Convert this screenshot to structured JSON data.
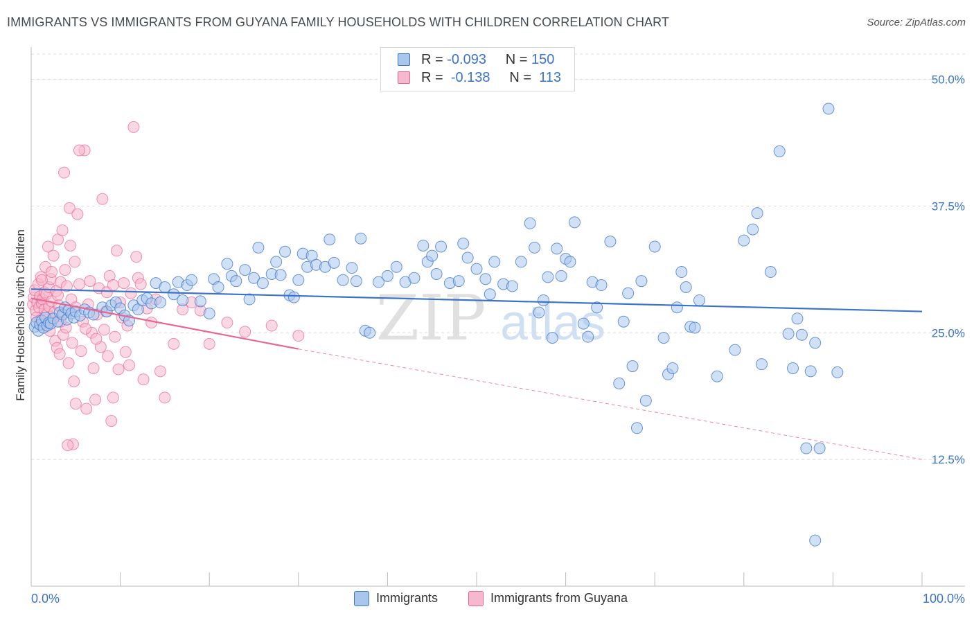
{
  "title": "IMMIGRANTS VS IMMIGRANTS FROM GUYANA FAMILY HOUSEHOLDS WITH CHILDREN CORRELATION CHART",
  "source": "Source: ZipAtlas.com",
  "watermark": {
    "zip": "ZIP",
    "atlas": "atlas"
  },
  "colors": {
    "blue": "#3b73c9",
    "blue_fill": "#a9c6ec",
    "pink": "#e86592",
    "pink_fill": "#f6b8cc",
    "grid": "#dcdcdc",
    "tick_label": "#3b73c9"
  },
  "legend_top": {
    "rows": [
      {
        "r_label": "R =",
        "r_value": "-0.093",
        "n_label": "N =",
        "n_value": "150"
      },
      {
        "r_label": "R =",
        "r_value": "-0.138",
        "n_label": "N =",
        "n_value": "113"
      }
    ]
  },
  "chart_data": {
    "type": "scatter",
    "title": "IMMIGRANTS VS IMMIGRANTS FROM GUYANA FAMILY HOUSEHOLDS WITH CHILDREN CORRELATION CHART",
    "xlabel": "",
    "ylabel": "Family Households with Children",
    "xlim": [
      0,
      100
    ],
    "ylim": [
      0,
      52.5
    ],
    "x_tick_labels": [
      "0.0%",
      "100.0%"
    ],
    "y_ticks": [
      12.5,
      25.0,
      37.5,
      50.0
    ],
    "y_tick_labels": [
      "12.5%",
      "25.0%",
      "37.5%",
      "50.0%"
    ],
    "grid": true,
    "legend_position": "bottom",
    "series": [
      {
        "name": "Immigrants",
        "color": "#3b73c9",
        "trend": {
          "x": [
            0,
            100
          ],
          "y": [
            29.3,
            27.1
          ],
          "style": "solid"
        },
        "points": [
          [
            0.4,
            25.6
          ],
          [
            0.6,
            26.0
          ],
          [
            0.8,
            25.2
          ],
          [
            1.0,
            25.8
          ],
          [
            1.2,
            26.2
          ],
          [
            1.4,
            25.5
          ],
          [
            1.6,
            26.5
          ],
          [
            1.8,
            25.7
          ],
          [
            2.0,
            26.0
          ],
          [
            2.2,
            25.9
          ],
          [
            2.5,
            26.4
          ],
          [
            3.0,
            26.1
          ],
          [
            3.2,
            27.0
          ],
          [
            3.5,
            26.8
          ],
          [
            3.8,
            27.5
          ],
          [
            4.0,
            26.3
          ],
          [
            4.2,
            27.2
          ],
          [
            4.5,
            26.9
          ],
          [
            4.8,
            26.5
          ],
          [
            5.0,
            27.1
          ],
          [
            5.5,
            26.7
          ],
          [
            6.0,
            27.3
          ],
          [
            6.5,
            27.0
          ],
          [
            7.0,
            26.8
          ],
          [
            8.0,
            27.5
          ],
          [
            8.5,
            27.1
          ],
          [
            9.0,
            27.7
          ],
          [
            9.5,
            28.0
          ],
          [
            10.0,
            27.4
          ],
          [
            10.5,
            26.7
          ],
          [
            11.0,
            26.2
          ],
          [
            11.5,
            27.7
          ],
          [
            12.0,
            27.3
          ],
          [
            12.5,
            28.2
          ],
          [
            13.0,
            28.4
          ],
          [
            13.5,
            27.9
          ],
          [
            14.0,
            29.9
          ],
          [
            14.5,
            28.0
          ],
          [
            15.0,
            29.5
          ],
          [
            16.0,
            28.8
          ],
          [
            16.5,
            30.0
          ],
          [
            17.0,
            28.2
          ],
          [
            17.5,
            29.7
          ],
          [
            18.0,
            30.2
          ],
          [
            19.0,
            28.1
          ],
          [
            20.0,
            26.9
          ],
          [
            20.5,
            30.3
          ],
          [
            21.0,
            29.5
          ],
          [
            22.0,
            31.8
          ],
          [
            22.5,
            30.6
          ],
          [
            23.0,
            30.1
          ],
          [
            24.0,
            31.2
          ],
          [
            24.5,
            28.3
          ],
          [
            25.0,
            30.4
          ],
          [
            25.5,
            33.4
          ],
          [
            26.0,
            29.9
          ],
          [
            27.0,
            30.8
          ],
          [
            27.5,
            32.0
          ],
          [
            28.0,
            30.7
          ],
          [
            28.5,
            33.0
          ],
          [
            29.0,
            28.7
          ],
          [
            29.5,
            28.5
          ],
          [
            30.0,
            30.2
          ],
          [
            30.5,
            32.8
          ],
          [
            31.0,
            31.5
          ],
          [
            31.5,
            32.6
          ],
          [
            32.0,
            31.7
          ],
          [
            33.0,
            31.5
          ],
          [
            33.5,
            34.2
          ],
          [
            34.0,
            31.9
          ],
          [
            35.0,
            30.2
          ],
          [
            36.0,
            31.4
          ],
          [
            36.5,
            30.1
          ],
          [
            37.0,
            34.3
          ],
          [
            37.5,
            25.2
          ],
          [
            38.0,
            25.0
          ],
          [
            39.0,
            30.0
          ],
          [
            40.0,
            30.6
          ],
          [
            41.0,
            31.5
          ],
          [
            42.0,
            30.0
          ],
          [
            43.0,
            30.4
          ],
          [
            44.0,
            33.6
          ],
          [
            44.5,
            32.0
          ],
          [
            45.0,
            32.6
          ],
          [
            45.5,
            30.8
          ],
          [
            46.0,
            33.5
          ],
          [
            47.0,
            29.9
          ],
          [
            48.0,
            30.1
          ],
          [
            48.5,
            33.8
          ],
          [
            49.0,
            32.4
          ],
          [
            50.0,
            31.3
          ],
          [
            51.0,
            30.3
          ],
          [
            51.5,
            28.8
          ],
          [
            52.0,
            32.0
          ],
          [
            53.0,
            29.8
          ],
          [
            54.0,
            29.6
          ],
          [
            55.0,
            32.0
          ],
          [
            56.0,
            35.8
          ],
          [
            56.5,
            33.4
          ],
          [
            57.0,
            27.0
          ],
          [
            57.5,
            28.2
          ],
          [
            58.0,
            30.5
          ],
          [
            58.5,
            24.5
          ],
          [
            59.0,
            33.3
          ],
          [
            59.5,
            30.6
          ],
          [
            60.0,
            32.3
          ],
          [
            60.5,
            32.0
          ],
          [
            61.0,
            35.9
          ],
          [
            62.0,
            25.9
          ],
          [
            62.5,
            24.6
          ],
          [
            63.0,
            30.0
          ],
          [
            63.5,
            27.5
          ],
          [
            64.0,
            29.7
          ],
          [
            65.0,
            34.0
          ],
          [
            66.0,
            20.0
          ],
          [
            66.5,
            26.1
          ],
          [
            67.0,
            28.9
          ],
          [
            67.5,
            21.7
          ],
          [
            68.0,
            15.6
          ],
          [
            68.5,
            30.1
          ],
          [
            69.0,
            18.3
          ],
          [
            70.0,
            33.5
          ],
          [
            71.0,
            24.5
          ],
          [
            71.5,
            20.9
          ],
          [
            72.0,
            21.5
          ],
          [
            72.5,
            27.5
          ],
          [
            73.0,
            31.0
          ],
          [
            73.5,
            29.5
          ],
          [
            74.0,
            25.6
          ],
          [
            74.5,
            25.5
          ],
          [
            75.0,
            28.2
          ],
          [
            77.0,
            20.7
          ],
          [
            79.0,
            23.3
          ],
          [
            80.0,
            34.1
          ],
          [
            81.0,
            35.2
          ],
          [
            81.5,
            36.8
          ],
          [
            82.0,
            21.9
          ],
          [
            83.0,
            31.0
          ],
          [
            84.0,
            42.9
          ],
          [
            85.0,
            24.9
          ],
          [
            85.5,
            21.5
          ],
          [
            86.0,
            26.4
          ],
          [
            86.5,
            24.8
          ],
          [
            87.5,
            21.2
          ],
          [
            88.0,
            24.0
          ],
          [
            88.5,
            13.6
          ],
          [
            89.5,
            47.1
          ],
          [
            90.5,
            21.1
          ],
          [
            88.0,
            4.5
          ],
          [
            87.0,
            13.6
          ]
        ]
      },
      {
        "name": "Immigrants from Guyana",
        "color": "#e86592",
        "trend": {
          "x": [
            0,
            30
          ],
          "y": [
            28.4,
            23.4
          ],
          "style": "solid"
        },
        "trend_extension": {
          "x": [
            30,
            100
          ],
          "y": [
            23.4,
            12.5
          ],
          "style": "dashed"
        },
        "points": [
          [
            0.2,
            27.8
          ],
          [
            0.3,
            28.5
          ],
          [
            0.4,
            29.2
          ],
          [
            0.5,
            27.2
          ],
          [
            0.6,
            26.5
          ],
          [
            0.7,
            28.0
          ],
          [
            0.8,
            29.8
          ],
          [
            0.9,
            27.5
          ],
          [
            1.0,
            28.6
          ],
          [
            1.0,
            26.2
          ],
          [
            1.1,
            30.5
          ],
          [
            1.2,
            27.9
          ],
          [
            1.3,
            28.3
          ],
          [
            1.4,
            25.8
          ],
          [
            1.5,
            29.0
          ],
          [
            1.5,
            27.3
          ],
          [
            1.6,
            31.5
          ],
          [
            1.7,
            28.8
          ],
          [
            1.8,
            26.9
          ],
          [
            1.9,
            33.5
          ],
          [
            2.0,
            27.6
          ],
          [
            2.0,
            29.5
          ],
          [
            2.1,
            25.2
          ],
          [
            2.2,
            30.3
          ],
          [
            2.3,
            28.1
          ],
          [
            2.4,
            26.4
          ],
          [
            2.5,
            32.6
          ],
          [
            2.6,
            27.0
          ],
          [
            2.7,
            24.2
          ],
          [
            2.8,
            29.1
          ],
          [
            2.9,
            23.5
          ],
          [
            3.0,
            34.2
          ],
          [
            3.0,
            28.7
          ],
          [
            3.1,
            27.7
          ],
          [
            3.2,
            22.9
          ],
          [
            3.3,
            30.0
          ],
          [
            3.4,
            26.6
          ],
          [
            3.5,
            35.1
          ],
          [
            3.6,
            24.8
          ],
          [
            3.7,
            40.8
          ],
          [
            3.8,
            31.2
          ],
          [
            3.9,
            25.5
          ],
          [
            4.0,
            29.6
          ],
          [
            4.1,
            27.2
          ],
          [
            4.2,
            22.0
          ],
          [
            4.3,
            37.3
          ],
          [
            4.4,
            33.6
          ],
          [
            4.5,
            28.3
          ],
          [
            4.6,
            24.0
          ],
          [
            4.7,
            14.0
          ],
          [
            4.8,
            20.2
          ],
          [
            4.9,
            32.0
          ],
          [
            5.0,
            27.5
          ],
          [
            5.0,
            18.0
          ],
          [
            5.2,
            36.7
          ],
          [
            5.4,
            29.8
          ],
          [
            5.6,
            23.2
          ],
          [
            5.8,
            26.1
          ],
          [
            6.0,
            43.0
          ],
          [
            6.2,
            17.5
          ],
          [
            6.4,
            27.8
          ],
          [
            6.6,
            30.1
          ],
          [
            6.8,
            25.0
          ],
          [
            7.0,
            21.5
          ],
          [
            7.2,
            18.4
          ],
          [
            7.4,
            26.8
          ],
          [
            7.6,
            29.4
          ],
          [
            7.8,
            23.6
          ],
          [
            8.0,
            38.2
          ],
          [
            8.2,
            25.3
          ],
          [
            8.4,
            27.1
          ],
          [
            8.6,
            22.7
          ],
          [
            8.8,
            30.6
          ],
          [
            9.0,
            16.3
          ],
          [
            9.2,
            18.6
          ],
          [
            9.4,
            24.6
          ],
          [
            9.6,
            33.1
          ],
          [
            9.8,
            21.4
          ],
          [
            10.0,
            28.0
          ],
          [
            10.2,
            26.5
          ],
          [
            10.4,
            29.9
          ],
          [
            10.6,
            23.1
          ],
          [
            10.8,
            25.7
          ],
          [
            11.0,
            21.8
          ],
          [
            11.2,
            28.9
          ],
          [
            11.5,
            45.3
          ],
          [
            11.8,
            32.5
          ],
          [
            12.0,
            30.4
          ],
          [
            12.3,
            29.8
          ],
          [
            12.6,
            20.4
          ],
          [
            13.0,
            27.4
          ],
          [
            13.5,
            26.0
          ],
          [
            14.0,
            28.3
          ],
          [
            14.5,
            21.2
          ],
          [
            15.0,
            18.6
          ],
          [
            16.0,
            23.9
          ],
          [
            17.0,
            27.3
          ],
          [
            18.0,
            28.0
          ],
          [
            19.0,
            27.2
          ],
          [
            20.0,
            23.9
          ],
          [
            22.0,
            26.0
          ],
          [
            24.0,
            25.1
          ],
          [
            27.0,
            25.7
          ],
          [
            30.0,
            24.7
          ],
          [
            1.2,
            30.2
          ],
          [
            2.3,
            31.0
          ],
          [
            3.3,
            26.1
          ],
          [
            4.1,
            13.9
          ],
          [
            5.4,
            43.0
          ],
          [
            6.1,
            25.4
          ],
          [
            7.3,
            24.4
          ],
          [
            8.5,
            29.0
          ],
          [
            9.2,
            29.7
          ]
        ]
      }
    ]
  },
  "bottom_legend": [
    {
      "label": "Immigrants"
    },
    {
      "label": "Immigrants from Guyana"
    }
  ]
}
